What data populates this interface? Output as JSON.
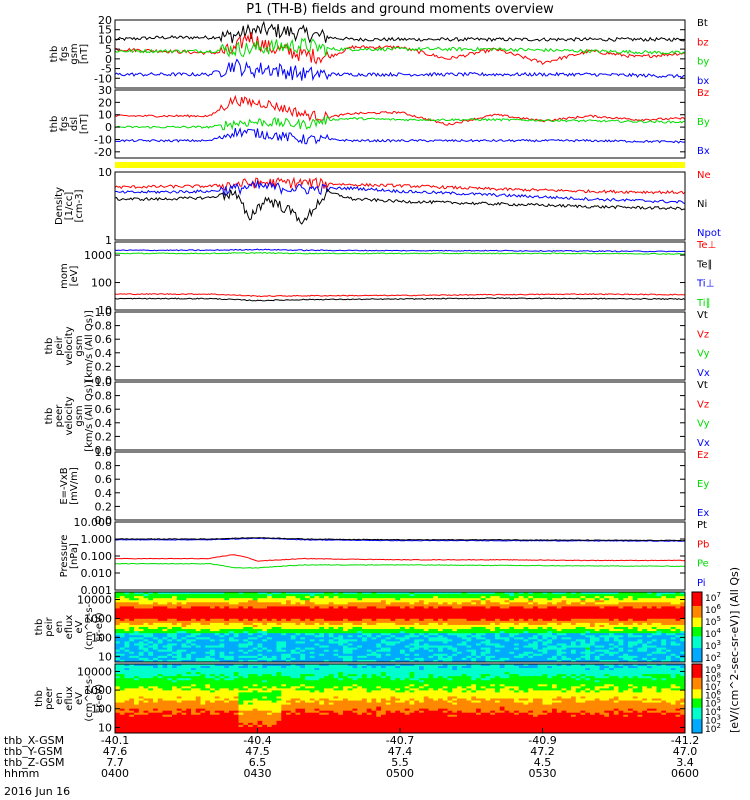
{
  "title": "P1 (TH-B) fields and ground moments overview",
  "date_label": "2016 Jun 16",
  "colors": {
    "black": "#000000",
    "red": "#ff0000",
    "green": "#00dd00",
    "blue": "#0000ff",
    "yellow": "#ffff00"
  },
  "x_axis": {
    "row_labels": [
      "thb_X-GSM",
      "thb_Y-GSM",
      "thb_Z-GSM",
      "hhmm"
    ],
    "ticks": [
      {
        "values": [
          "-40.1",
          "47.6",
          "7.7",
          "0400"
        ]
      },
      {
        "values": [
          "-40.4",
          "47.5",
          "6.5",
          "0430"
        ]
      },
      {
        "values": [
          "-40.7",
          "47.4",
          "5.5",
          "0500"
        ]
      },
      {
        "values": [
          "-40.9",
          "47.2",
          "4.5",
          "0530"
        ]
      },
      {
        "values": [
          "-41.2",
          "47.0",
          "3.4",
          "0600"
        ]
      }
    ]
  },
  "colorbar_label": "[eV/(cm^2-sec-sr-eV)] (All Qs)",
  "chart_data": [
    {
      "id": "fgs_gsm",
      "type": "line",
      "ylabel": [
        "thb",
        "fgs",
        "gsm",
        "[nT]"
      ],
      "ylim": [
        -15,
        20
      ],
      "yticks": [
        "20",
        "15",
        "10",
        "5",
        "0",
        "-5",
        "-10"
      ],
      "legend": [
        {
          "label": "Bt",
          "color": "#000000"
        },
        {
          "label": "bz",
          "color": "#ff0000"
        },
        {
          "label": "by",
          "color": "#00dd00"
        },
        {
          "label": "bx",
          "color": "#0000ff"
        }
      ],
      "series": [
        {
          "color": "#000000",
          "x": [
            0,
            10,
            20,
            25,
            28,
            32,
            40,
            45,
            50,
            60,
            80,
            90,
            100,
            120
          ],
          "y": [
            10,
            11,
            11,
            12,
            14,
            15,
            13,
            11,
            10,
            10,
            10,
            10,
            10,
            10
          ]
        },
        {
          "color": "#ff0000",
          "x": [
            0,
            10,
            20,
            25,
            28,
            32,
            40,
            45,
            50,
            60,
            70,
            80,
            90,
            100,
            110,
            120
          ],
          "y": [
            5,
            4,
            3,
            4,
            12,
            6,
            2,
            1,
            6,
            6,
            0,
            5,
            -2,
            4,
            1,
            3
          ]
        },
        {
          "color": "#00dd00",
          "x": [
            0,
            10,
            20,
            25,
            28,
            32,
            40,
            45,
            50,
            60,
            80,
            100,
            120
          ],
          "y": [
            4,
            4,
            4,
            5,
            5,
            6,
            7,
            5,
            5,
            5,
            5,
            4,
            3
          ]
        },
        {
          "color": "#0000ff",
          "x": [
            0,
            10,
            20,
            25,
            28,
            32,
            40,
            45,
            50,
            60,
            80,
            100,
            120
          ],
          "y": [
            -8,
            -8,
            -8,
            -3,
            -6,
            -5,
            -8,
            -8,
            -8,
            -8,
            -8,
            -8,
            -9
          ]
        }
      ]
    },
    {
      "id": "fgs_dsl",
      "type": "line",
      "ylabel": [
        "thb",
        "fgs",
        "dsl",
        "[nT]"
      ],
      "ylim": [
        -25,
        30
      ],
      "yticks": [
        "30",
        "20",
        "10",
        "0",
        "-10",
        "-20"
      ],
      "legend": [
        {
          "label": "Bz",
          "color": "#ff0000"
        },
        {
          "label": "By",
          "color": "#00dd00"
        },
        {
          "label": "Bx",
          "color": "#0000ff"
        }
      ],
      "series": [
        {
          "color": "#ff0000",
          "x": [
            0,
            10,
            20,
            25,
            28,
            32,
            40,
            45,
            50,
            60,
            70,
            80,
            90,
            100,
            110,
            120
          ],
          "y": [
            9,
            9,
            9,
            22,
            20,
            19,
            10,
            8,
            11,
            12,
            2,
            10,
            5,
            9,
            6,
            7
          ]
        },
        {
          "color": "#00dd00",
          "x": [
            0,
            10,
            20,
            25,
            28,
            32,
            40,
            45,
            50,
            60,
            80,
            100,
            120
          ],
          "y": [
            0,
            0,
            0,
            3,
            4,
            4,
            2,
            6,
            7,
            6,
            6,
            5,
            4
          ]
        },
        {
          "color": "#0000ff",
          "x": [
            0,
            10,
            20,
            25,
            28,
            32,
            40,
            45,
            50,
            60,
            80,
            100,
            120
          ],
          "y": [
            -11,
            -11,
            -11,
            -4,
            -4,
            -6,
            -10,
            -10,
            -11,
            -11,
            -11,
            -11,
            -12
          ]
        }
      ]
    },
    {
      "id": "density",
      "type": "line",
      "ylabel": [
        "Density",
        "[1/cc]",
        "[cm-3]"
      ],
      "ylim": [
        1,
        10
      ],
      "log": true,
      "yticks": [
        "10",
        "1"
      ],
      "legend": [
        {
          "label": "Ne",
          "color": "#ff0000"
        },
        {
          "label": "Ni",
          "color": "#000000"
        },
        {
          "label": "Npot",
          "color": "#0000ff"
        }
      ],
      "series": [
        {
          "color": "#ff0000",
          "x": [
            0,
            20,
            30,
            40,
            50,
            60,
            80,
            100,
            120
          ],
          "y": [
            6,
            6.2,
            7,
            7,
            6.5,
            6.3,
            5.6,
            5.2,
            5.0
          ]
        },
        {
          "color": "#0000ff",
          "x": [
            0,
            20,
            30,
            40,
            50,
            60,
            80,
            100,
            120
          ],
          "y": [
            5,
            5.2,
            6.2,
            5.6,
            5.8,
            5.2,
            4.6,
            4.0,
            3.6
          ]
        },
        {
          "color": "#000000",
          "x": [
            0,
            10,
            20,
            25,
            28,
            32,
            40,
            45,
            50,
            60,
            80,
            100,
            120
          ],
          "y": [
            4,
            4,
            4.2,
            5,
            2,
            4,
            1.8,
            5,
            4,
            3.7,
            3.4,
            3.1,
            2.9
          ]
        }
      ]
    },
    {
      "id": "temperature",
      "type": "line",
      "ylabel": [
        "mom",
        "[eV]"
      ],
      "ylim": [
        10,
        3000
      ],
      "log": true,
      "yticks": [
        "1000",
        "100",
        "10"
      ],
      "legend": [
        {
          "label": "Te⊥",
          "color": "#ff0000"
        },
        {
          "label": "Te∥",
          "color": "#000000"
        },
        {
          "label": "Ti⊥",
          "color": "#0000ff"
        },
        {
          "label": "Ti∥",
          "color": "#00dd00"
        }
      ],
      "series": [
        {
          "color": "#0000ff",
          "x": [
            0,
            20,
            30,
            40,
            60,
            80,
            100,
            120
          ],
          "y": [
            1500,
            1500,
            1600,
            1500,
            1450,
            1450,
            1400,
            1350
          ]
        },
        {
          "color": "#00dd00",
          "x": [
            0,
            20,
            30,
            40,
            60,
            80,
            100,
            120
          ],
          "y": [
            1150,
            1150,
            1200,
            1150,
            1150,
            1150,
            1150,
            1100
          ]
        },
        {
          "color": "#ff0000",
          "x": [
            0,
            20,
            30,
            40,
            60,
            80,
            100,
            120
          ],
          "y": [
            38,
            38,
            32,
            33,
            34,
            36,
            38,
            36
          ]
        },
        {
          "color": "#000000",
          "x": [
            0,
            20,
            30,
            40,
            60,
            80,
            100,
            120
          ],
          "y": [
            26,
            26,
            22,
            24,
            25,
            27,
            26,
            25
          ]
        }
      ]
    },
    {
      "id": "vel_ion",
      "type": "line",
      "ylabel": [
        "thb",
        "peir",
        "velocity",
        "gsm",
        "[km/s (All Qs)]"
      ],
      "ylim": [
        0,
        1
      ],
      "yticks": [
        "1.0",
        "0.8",
        "0.6",
        "0.4",
        "0.2",
        "0.0"
      ],
      "legend": [
        {
          "label": "Vt",
          "color": "#000000"
        },
        {
          "label": "Vz",
          "color": "#ff0000"
        },
        {
          "label": "Vy",
          "color": "#00dd00"
        },
        {
          "label": "Vx",
          "color": "#0000ff"
        }
      ],
      "series": []
    },
    {
      "id": "vel_elec",
      "type": "line",
      "ylabel": [
        "thb",
        "peer",
        "velocity",
        "gsm",
        "[km/s (All Qs)]"
      ],
      "ylim": [
        0,
        1
      ],
      "yticks": [
        "1.0",
        "0.8",
        "0.6",
        "0.4",
        "0.2",
        "0.0"
      ],
      "legend": [
        {
          "label": "Vt",
          "color": "#000000"
        },
        {
          "label": "Vz",
          "color": "#ff0000"
        },
        {
          "label": "Vy",
          "color": "#00dd00"
        },
        {
          "label": "Vx",
          "color": "#0000ff"
        }
      ],
      "series": []
    },
    {
      "id": "efield",
      "type": "line",
      "ylabel": [
        "E=-VxB",
        "[mV/m]"
      ],
      "ylim": [
        0,
        1
      ],
      "yticks": [
        "1.0",
        "0.8",
        "0.6",
        "0.4",
        "0.2",
        "0.0"
      ],
      "legend": [
        {
          "label": "Ez",
          "color": "#ff0000"
        },
        {
          "label": "Ey",
          "color": "#00dd00"
        },
        {
          "label": "Ex",
          "color": "#0000ff"
        }
      ],
      "series": []
    },
    {
      "id": "pressure",
      "type": "line",
      "ylabel": [
        "Pressure",
        "[nPa]"
      ],
      "ylim": [
        0.001,
        10
      ],
      "log": true,
      "yticks": [
        "10.000",
        "1.000",
        "0.100",
        "0.010",
        "0.001"
      ],
      "legend": [
        {
          "label": "Pt",
          "color": "#000000"
        },
        {
          "label": "Pb",
          "color": "#ff0000"
        },
        {
          "label": "Pe",
          "color": "#00dd00"
        },
        {
          "label": "Pi",
          "color": "#0000ff"
        }
      ],
      "series": [
        {
          "color": "#0000ff",
          "x": [
            0,
            20,
            30,
            40,
            60,
            80,
            100,
            120
          ],
          "y": [
            0.9,
            0.9,
            1.1,
            0.9,
            0.8,
            0.8,
            0.78,
            0.75
          ]
        },
        {
          "color": "#000000",
          "x": [
            0,
            20,
            30,
            40,
            60,
            80,
            100,
            120
          ],
          "y": [
            1.0,
            1.0,
            1.2,
            1.0,
            0.9,
            0.9,
            0.85,
            0.82
          ]
        },
        {
          "color": "#ff0000",
          "x": [
            0,
            20,
            25,
            30,
            40,
            60,
            80,
            100,
            120
          ],
          "y": [
            0.07,
            0.07,
            0.12,
            0.05,
            0.07,
            0.06,
            0.06,
            0.055,
            0.055
          ]
        },
        {
          "color": "#00dd00",
          "x": [
            0,
            20,
            25,
            30,
            40,
            60,
            80,
            100,
            120
          ],
          "y": [
            0.035,
            0.035,
            0.02,
            0.02,
            0.03,
            0.03,
            0.028,
            0.026,
            0.025
          ]
        }
      ]
    },
    {
      "id": "ion_spec",
      "type": "heatmap",
      "ylabel": [
        "thb",
        "peir",
        "en",
        "eflux",
        "eV",
        "(cm^2-s-",
        "sr-eV)"
      ],
      "ylim": [
        5,
        25000
      ],
      "log": true,
      "yticks": [
        "10000",
        "1000",
        "100",
        "10"
      ],
      "colorbar": {
        "ticks": [
          "10^7",
          "10^6",
          "10^5",
          "10^4",
          "10^3",
          "10^2"
        ]
      }
    },
    {
      "id": "elec_spec",
      "type": "heatmap",
      "ylabel": [
        "thb",
        "peer",
        "en",
        "eflux",
        "eV",
        "(cm^2-s-",
        "sr-eV)"
      ],
      "ylim": [
        5,
        25000
      ],
      "log": true,
      "yticks": [
        "10000",
        "1000",
        "100",
        "10"
      ],
      "colorbar": {
        "ticks": [
          "10^9",
          "10^8",
          "10^7",
          "10^6",
          "10^5",
          "10^4",
          "10^3",
          "10^2"
        ]
      }
    }
  ]
}
